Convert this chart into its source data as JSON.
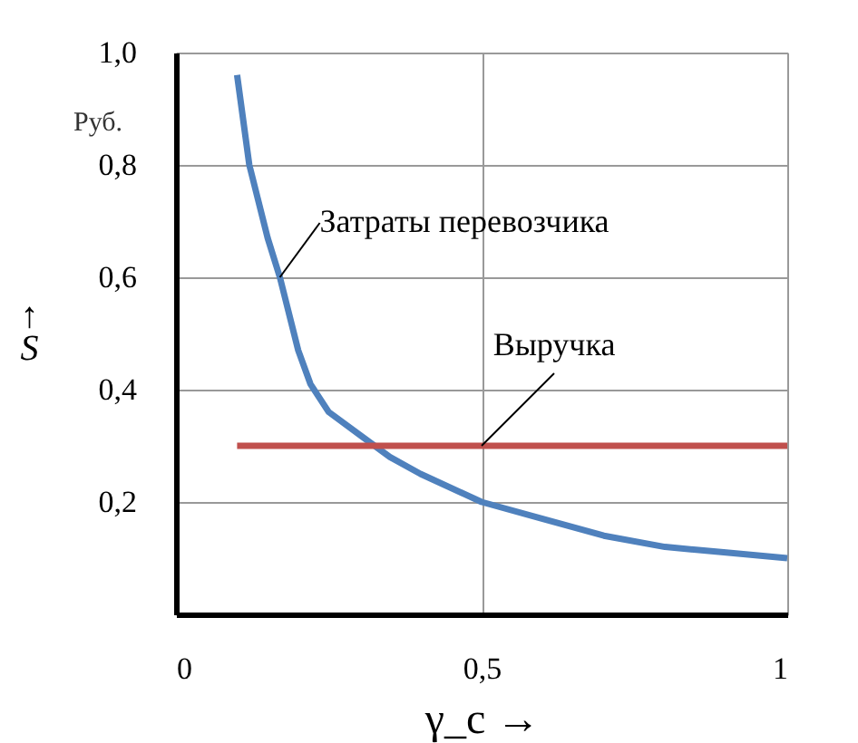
{
  "chart_data": {
    "type": "line",
    "xlabel": "γ_c →",
    "ylabel": "↑ S",
    "annotations": [
      "Руб."
    ],
    "xlim": [
      0,
      1
    ],
    "ylim": [
      0,
      1
    ],
    "xticks": [
      {
        "value": 0,
        "label": "0"
      },
      {
        "value": 0.5,
        "label": "0,5"
      },
      1
    ],
    "yticks": [
      {
        "value": 0.2,
        "label": "0,2"
      },
      {
        "value": 0.4,
        "label": "0,4"
      },
      {
        "value": 0.6,
        "label": "0,6"
      },
      {
        "value": 0.8,
        "label": "0,8"
      },
      {
        "value": 1.0,
        "label": "1,0"
      }
    ],
    "grid": true,
    "legend": false,
    "line_style": "solid",
    "marker": "none",
    "series": [
      {
        "name": "Затраты перевозчика",
        "color": "#4f81bd",
        "x": [
          0.1,
          0.12,
          0.15,
          0.17,
          0.2,
          0.22,
          0.25,
          0.3,
          0.35,
          0.4,
          0.5,
          0.6,
          0.7,
          0.8,
          0.9,
          1.0
        ],
        "values": [
          0.96,
          0.8,
          0.67,
          0.6,
          0.47,
          0.41,
          0.36,
          0.32,
          0.28,
          0.25,
          0.2,
          0.17,
          0.14,
          0.12,
          0.11,
          0.1
        ]
      },
      {
        "name": "Выручка",
        "color": "#c0504d",
        "x": [
          0.1,
          0.5,
          1.0
        ],
        "values": [
          0.3,
          0.3,
          0.3
        ]
      }
    ]
  }
}
